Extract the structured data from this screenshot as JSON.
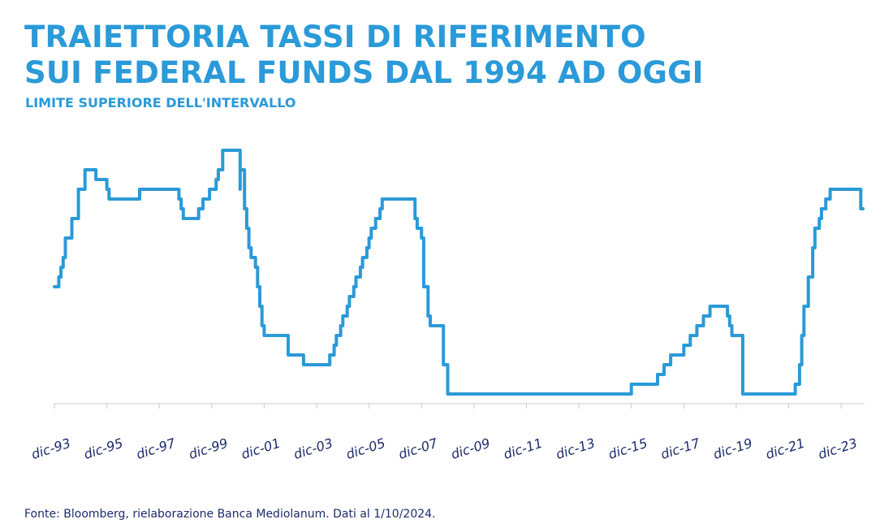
{
  "header": {
    "title_line1": "TRAIETTORIA TASSI DI RIFERIMENTO",
    "title_line2": "SUI FEDERAL FUNDS DAL 1994 AD OGGI",
    "subtitle": "LIMITE SUPERIORE DELL'INTERVALLO"
  },
  "footer": {
    "source": "Fonte: Bloomberg, rielaborazione Banca Mediolanum. Dati al 1/10/2024."
  },
  "chart_data": {
    "type": "line",
    "title": "TRAIETTORIA TASSI DI RIFERIMENTO SUI FEDERAL FUNDS DAL 1994 AD OGGI",
    "subtitle": "LIMITE SUPERIORE DELL'INTERVALLO",
    "xlabel": "",
    "ylabel": "",
    "x_ticks": [
      "dic-93",
      "dic-95",
      "dic-97",
      "dic-99",
      "dic-01",
      "dic-03",
      "dic-05",
      "dic-07",
      "dic-09",
      "dic-11",
      "dic-13",
      "dic-15",
      "dic-17",
      "dic-19",
      "dic-21",
      "dic-23"
    ],
    "xlim": [
      "1993-12",
      "2024-10"
    ],
    "ylim": [
      0,
      6.75
    ],
    "grid": false,
    "y_axis_labels_shown": false,
    "line_color": "#2a9ad8",
    "series": [
      {
        "name": "",
        "points": [
          [
            "1993-12",
            3.0
          ],
          [
            "1994-02",
            3.25
          ],
          [
            "1994-03",
            3.5
          ],
          [
            "1994-04",
            3.75
          ],
          [
            "1994-05",
            4.25
          ],
          [
            "1994-08",
            4.75
          ],
          [
            "1994-11",
            5.5
          ],
          [
            "1995-02",
            6.0
          ],
          [
            "1995-07",
            5.75
          ],
          [
            "1995-12",
            5.5
          ],
          [
            "1996-01",
            5.25
          ],
          [
            "1997-03",
            5.5
          ],
          [
            "1998-09",
            5.25
          ],
          [
            "1998-10",
            5.0
          ],
          [
            "1998-11",
            4.75
          ],
          [
            "1999-06",
            5.0
          ],
          [
            "1999-08",
            5.25
          ],
          [
            "1999-11",
            5.5
          ],
          [
            "2000-02",
            5.75
          ],
          [
            "2000-03",
            6.0
          ],
          [
            "2000-05",
            6.5
          ],
          [
            "2001-01",
            5.5
          ],
          [
            "2001-01",
            6.0
          ],
          [
            "2001-03",
            5.0
          ],
          [
            "2001-04",
            4.5
          ],
          [
            "2001-05",
            4.0
          ],
          [
            "2001-06",
            3.75
          ],
          [
            "2001-08",
            3.5
          ],
          [
            "2001-09",
            3.0
          ],
          [
            "2001-10",
            2.5
          ],
          [
            "2001-11",
            2.0
          ],
          [
            "2001-12",
            1.75
          ],
          [
            "2002-11",
            1.25
          ],
          [
            "2003-06",
            1.0
          ],
          [
            "2004-06",
            1.25
          ],
          [
            "2004-08",
            1.5
          ],
          [
            "2004-09",
            1.75
          ],
          [
            "2004-11",
            2.0
          ],
          [
            "2004-12",
            2.25
          ],
          [
            "2005-02",
            2.5
          ],
          [
            "2005-03",
            2.75
          ],
          [
            "2005-05",
            3.0
          ],
          [
            "2005-06",
            3.25
          ],
          [
            "2005-08",
            3.5
          ],
          [
            "2005-09",
            3.75
          ],
          [
            "2005-11",
            4.0
          ],
          [
            "2005-12",
            4.25
          ],
          [
            "2006-01",
            4.5
          ],
          [
            "2006-03",
            4.75
          ],
          [
            "2006-05",
            5.0
          ],
          [
            "2006-06",
            5.25
          ],
          [
            "2007-09",
            4.75
          ],
          [
            "2007-10",
            4.5
          ],
          [
            "2007-12",
            4.25
          ],
          [
            "2008-01",
            3.5
          ],
          [
            "2008-01",
            3.0
          ],
          [
            "2008-03",
            2.25
          ],
          [
            "2008-04",
            2.0
          ],
          [
            "2008-10",
            1.5
          ],
          [
            "2008-10",
            1.0
          ],
          [
            "2008-12",
            0.25
          ],
          [
            "2015-12",
            0.5
          ],
          [
            "2016-12",
            0.75
          ],
          [
            "2017-03",
            1.0
          ],
          [
            "2017-06",
            1.25
          ],
          [
            "2017-12",
            1.5
          ],
          [
            "2018-03",
            1.75
          ],
          [
            "2018-06",
            2.0
          ],
          [
            "2018-09",
            2.25
          ],
          [
            "2018-12",
            2.5
          ],
          [
            "2019-08",
            2.25
          ],
          [
            "2019-09",
            2.0
          ],
          [
            "2019-10",
            1.75
          ],
          [
            "2020-03",
            1.25
          ],
          [
            "2020-03",
            0.25
          ],
          [
            "2022-03",
            0.5
          ],
          [
            "2022-05",
            1.0
          ],
          [
            "2022-06",
            1.75
          ],
          [
            "2022-07",
            2.5
          ],
          [
            "2022-09",
            3.25
          ],
          [
            "2022-11",
            4.0
          ],
          [
            "2022-12",
            4.5
          ],
          [
            "2023-02",
            4.75
          ],
          [
            "2023-03",
            5.0
          ],
          [
            "2023-05",
            5.25
          ],
          [
            "2023-07",
            5.5
          ],
          [
            "2024-09",
            5.5
          ],
          [
            "2024-09",
            5.0
          ],
          [
            "2024-10",
            5.0
          ]
        ]
      }
    ]
  }
}
